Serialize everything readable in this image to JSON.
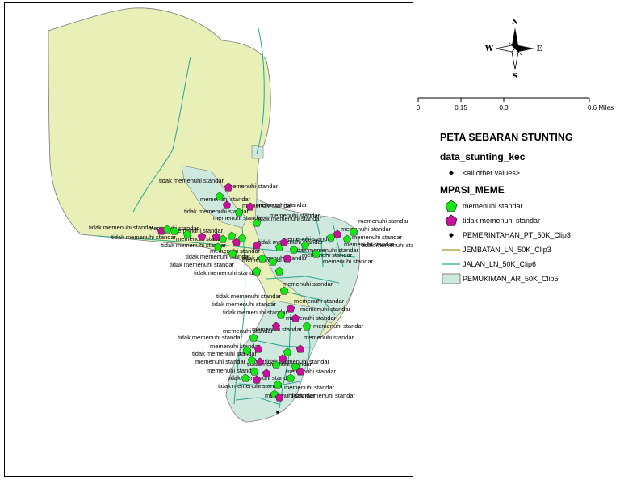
{
  "map": {
    "compass": {
      "n": "N",
      "s": "S",
      "e": "E",
      "w": "W"
    },
    "scale": {
      "ticks": [
        "0",
        "0.15",
        "0.3",
        "0.6 Miles"
      ]
    },
    "labels": {
      "memenuhi": "memenuhi standar",
      "tidak": "tidak memenuhi standar"
    },
    "colors": {
      "region_fill": "#e8f0b8",
      "region_outline": "#7a7a7a",
      "settlement_fill": "#cfe9df",
      "road_line": "#2aa58f",
      "bridge_line": "#b9a54a",
      "memenuhi_fill": "#14e814",
      "tidak_fill": "#c8109c"
    }
  },
  "legend": {
    "title": "PETA SEBARAN STUNTING",
    "layers": [
      {
        "name": "data_stunting_kec",
        "items": [
          {
            "symbol": "dot-icon",
            "label": "<all other values>"
          }
        ]
      },
      {
        "name": "MPASI_MEME",
        "items": [
          {
            "symbol": "green-pentagon-icon",
            "label": "memenuhi standar"
          },
          {
            "symbol": "magenta-pentagon-icon",
            "label": "tidak memenuhi standar"
          },
          {
            "symbol": "dot-icon",
            "label": "PEMERINTAHAN_PT_50K_Clip3"
          },
          {
            "symbol": "olive-line-icon",
            "label": "JEMBATAN_LN_50K_Clip3"
          },
          {
            "symbol": "teal-line-icon",
            "label": "JALAN_LN_50K_Clip6"
          },
          {
            "symbol": "settlement-area-icon",
            "label": "PEMUKIMAN_AR_50K_Clip5"
          }
        ]
      }
    ]
  }
}
